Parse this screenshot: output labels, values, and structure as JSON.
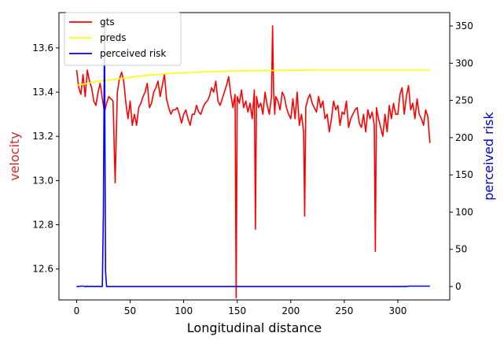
{
  "chart_data": {
    "type": "line",
    "x": {
      "label": "Longitudinal distance",
      "range": [
        -16.5,
        348.5
      ],
      "ticks": [
        0,
        50,
        100,
        150,
        200,
        250,
        300
      ]
    },
    "y_left": {
      "label": "velocity",
      "color": "#d62728",
      "range": [
        12.46,
        13.76
      ],
      "ticks": [
        12.6,
        12.8,
        13.0,
        13.2,
        13.4,
        13.6
      ],
      "tick_labels": [
        "12.6",
        "12.8",
        "13.0",
        "13.2",
        "13.4",
        "13.6"
      ]
    },
    "y_right": {
      "label": "perceived risk",
      "color": "#0000cc",
      "range": [
        -18,
        368
      ],
      "ticks": [
        0,
        50,
        100,
        150,
        200,
        250,
        300,
        350
      ],
      "tick_labels": [
        "0",
        "50",
        "100",
        "150",
        "200",
        "250",
        "300",
        "350"
      ]
    },
    "legend": {
      "position": "top-left"
    },
    "series": [
      {
        "name": "gts",
        "color": "#ff0000",
        "axis": "left",
        "x": [
          0,
          2,
          4,
          6,
          8,
          10,
          12,
          14,
          16,
          18,
          20,
          22,
          24,
          26,
          28,
          30,
          32,
          34,
          36,
          38,
          40,
          42,
          44,
          46,
          48,
          50,
          52,
          54,
          56,
          58,
          60,
          62,
          64,
          66,
          68,
          70,
          72,
          74,
          76,
          78,
          80,
          82,
          84,
          86,
          88,
          90,
          92,
          94,
          96,
          98,
          100,
          102,
          104,
          106,
          108,
          110,
          112,
          114,
          116,
          118,
          120,
          122,
          124,
          126,
          128,
          130,
          132,
          134,
          136,
          138,
          140,
          142,
          144,
          146,
          148,
          149,
          150,
          152,
          154,
          156,
          158,
          160,
          162,
          164,
          166,
          167,
          168,
          170,
          172,
          174,
          176,
          178,
          180,
          182,
          183,
          184,
          185,
          186,
          188,
          190,
          192,
          194,
          196,
          198,
          200,
          202,
          204,
          206,
          208,
          210,
          212,
          213,
          214,
          216,
          218,
          220,
          222,
          224,
          226,
          228,
          230,
          232,
          234,
          236,
          238,
          240,
          242,
          244,
          246,
          248,
          250,
          252,
          254,
          256,
          258,
          260,
          262,
          264,
          266,
          268,
          270,
          272,
          274,
          276,
          278,
          279,
          280,
          282,
          284,
          286,
          288,
          290,
          292,
          294,
          296,
          298,
          300,
          302,
          304,
          306,
          308,
          310,
          312,
          314,
          316,
          318,
          320,
          322,
          324,
          326,
          328,
          330
        ],
        "values": [
          13.5,
          13.42,
          13.39,
          13.48,
          13.38,
          13.5,
          13.45,
          13.42,
          13.36,
          13.34,
          13.4,
          13.44,
          13.37,
          13.31,
          13.35,
          13.38,
          13.37,
          13.36,
          12.99,
          13.4,
          13.46,
          13.49,
          13.45,
          13.35,
          13.28,
          13.36,
          13.25,
          13.3,
          13.25,
          13.33,
          13.35,
          13.38,
          13.4,
          13.44,
          13.33,
          13.35,
          13.4,
          13.42,
          13.45,
          13.38,
          13.43,
          13.48,
          13.37,
          13.33,
          13.3,
          13.32,
          13.32,
          13.33,
          13.3,
          13.26,
          13.3,
          13.32,
          13.28,
          13.25,
          13.3,
          13.3,
          13.34,
          13.31,
          13.3,
          13.33,
          13.35,
          13.36,
          13.38,
          13.42,
          13.4,
          13.45,
          13.36,
          13.34,
          13.37,
          13.4,
          13.43,
          13.47,
          13.39,
          13.33,
          13.39,
          12.47,
          13.38,
          13.35,
          13.41,
          13.33,
          13.36,
          13.31,
          13.35,
          13.28,
          13.41,
          12.78,
          13.38,
          13.33,
          13.35,
          13.3,
          13.4,
          13.34,
          13.3,
          13.38,
          13.7,
          13.4,
          13.3,
          13.38,
          13.36,
          13.32,
          13.4,
          13.38,
          13.33,
          13.3,
          13.28,
          13.37,
          13.28,
          13.4,
          13.25,
          13.3,
          13.22,
          12.84,
          13.33,
          13.37,
          13.39,
          13.35,
          13.33,
          13.31,
          13.38,
          13.33,
          13.36,
          13.28,
          13.3,
          13.22,
          13.28,
          13.36,
          13.32,
          13.34,
          13.25,
          13.31,
          13.3,
          13.36,
          13.24,
          13.28,
          13.3,
          13.32,
          13.33,
          13.26,
          13.24,
          13.3,
          13.22,
          13.32,
          13.28,
          13.31,
          13.25,
          12.68,
          13.33,
          13.28,
          13.24,
          13.2,
          13.3,
          13.22,
          13.34,
          13.28,
          13.35,
          13.3,
          13.3,
          13.39,
          13.42,
          13.3,
          13.38,
          13.43,
          13.32,
          13.35,
          13.28,
          13.37,
          13.3,
          13.28,
          13.25,
          13.32,
          13.29,
          13.17
        ]
      },
      {
        "name": "preds",
        "color": "#ffff00",
        "axis": "left",
        "x": [
          0,
          10,
          20,
          30,
          40,
          50,
          60,
          70,
          80,
          90,
          100,
          120,
          140,
          160,
          180,
          200,
          220,
          240,
          260,
          280,
          300,
          320,
          330
        ],
        "values": [
          13.43,
          13.44,
          13.45,
          13.455,
          13.46,
          13.467,
          13.473,
          13.478,
          13.482,
          13.485,
          13.488,
          13.492,
          13.495,
          13.497,
          13.498,
          13.499,
          13.5,
          13.5,
          13.5,
          13.5,
          13.5,
          13.5,
          13.5
        ]
      },
      {
        "name": "perceived risk",
        "color": "#0000ff",
        "axis": "right",
        "x": [
          0,
          2,
          4,
          6,
          8,
          10,
          12,
          14,
          16,
          18,
          20,
          22,
          24,
          25,
          26,
          27,
          28,
          30,
          40,
          50,
          100,
          150,
          200,
          250,
          300,
          308,
          310,
          320,
          330
        ],
        "values": [
          0,
          0,
          0.5,
          0.5,
          0,
          0.3,
          0,
          0.3,
          0,
          0,
          0.3,
          0,
          0,
          100,
          350,
          20,
          0,
          0,
          0,
          0,
          0,
          0,
          0,
          0,
          0,
          0,
          0.5,
          0.5,
          0.5
        ]
      }
    ]
  }
}
